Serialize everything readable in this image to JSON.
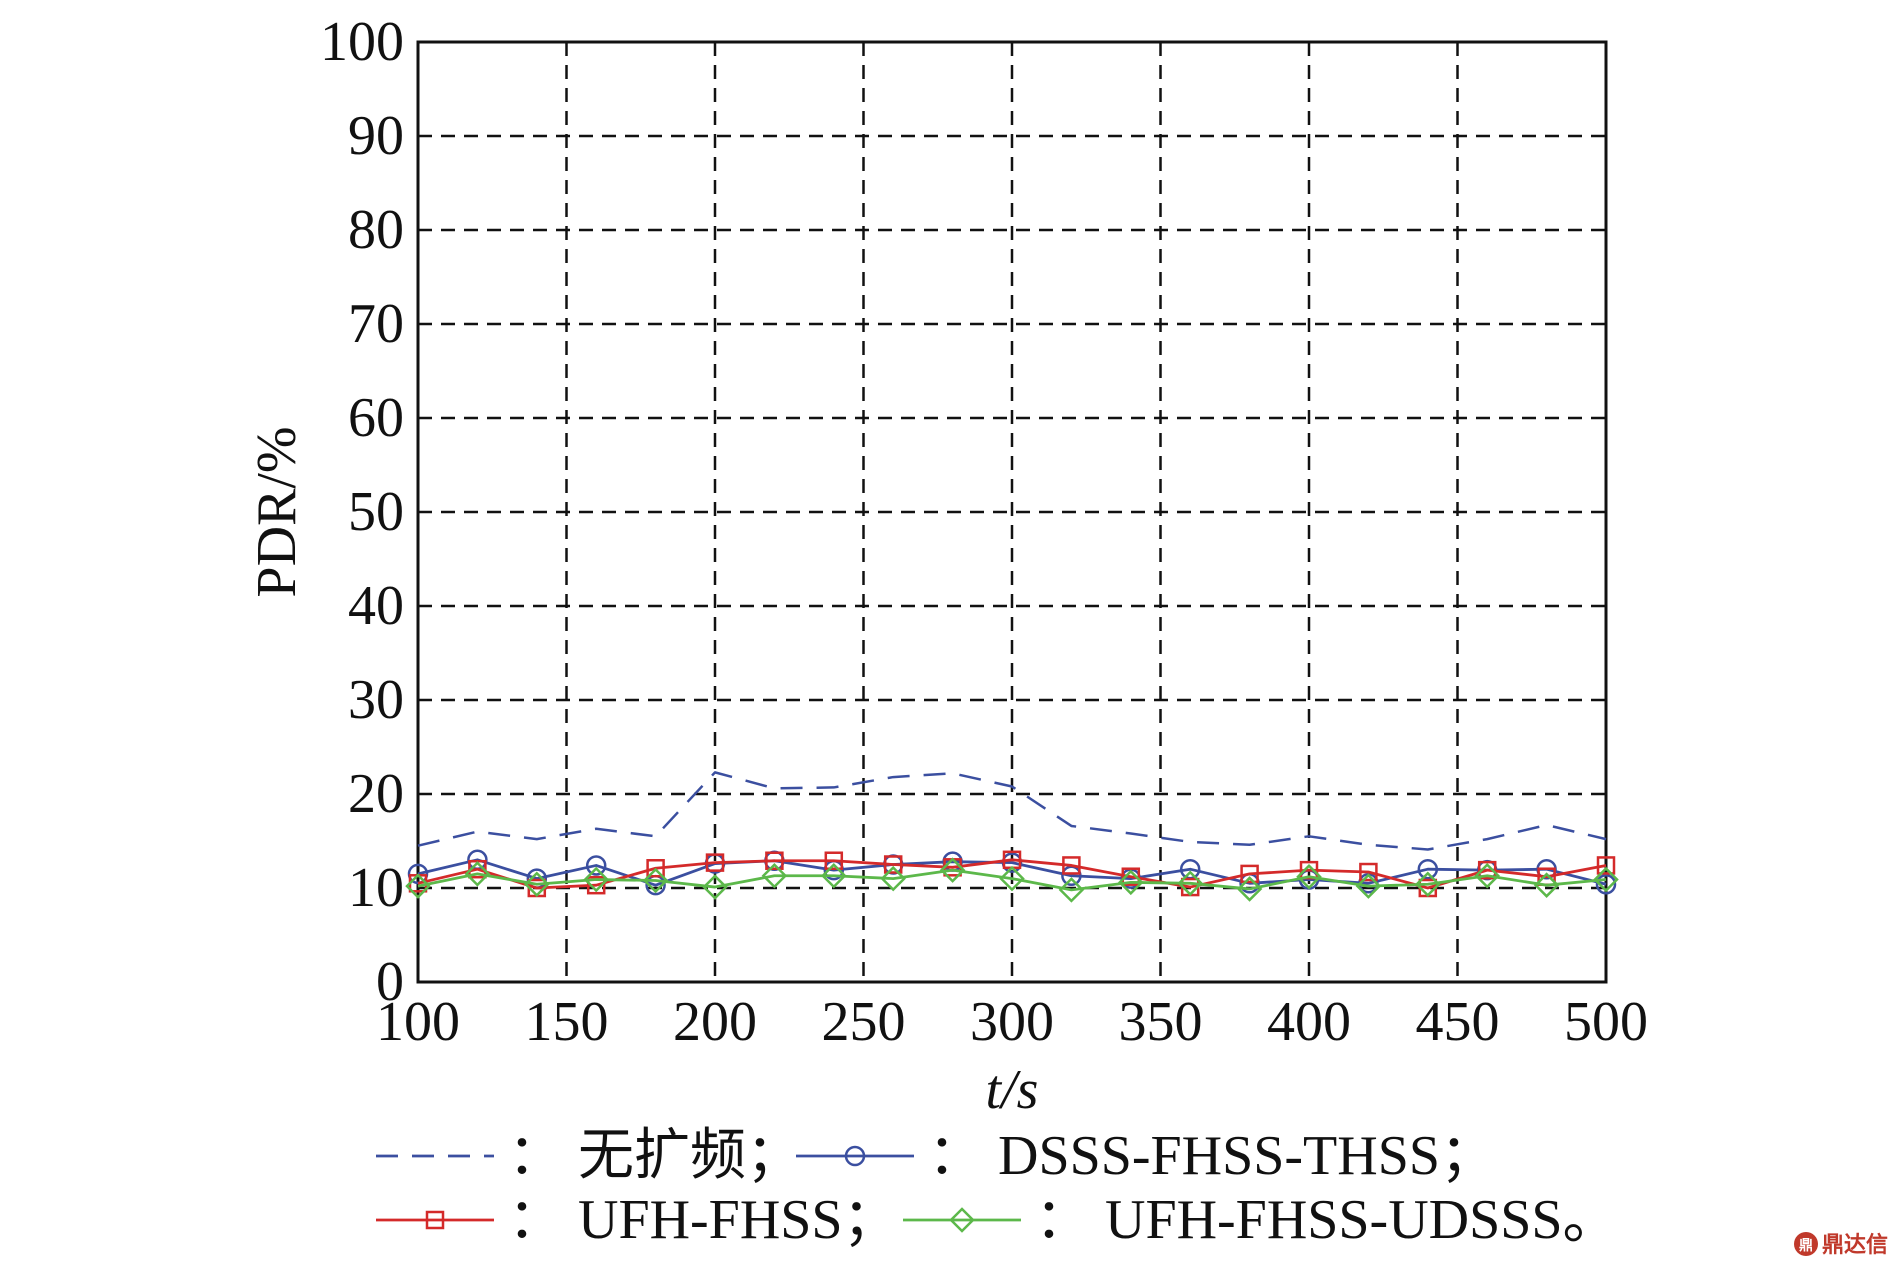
{
  "chart_data": {
    "type": "line",
    "xlabel": "t/s",
    "ylabel": "PDR/%",
    "xlim": [
      100,
      500
    ],
    "ylim": [
      0,
      100
    ],
    "xticks": [
      100,
      150,
      200,
      250,
      300,
      350,
      400,
      450,
      500
    ],
    "yticks": [
      0,
      10,
      20,
      30,
      40,
      50,
      60,
      70,
      80,
      90,
      100
    ],
    "grid": true,
    "x": [
      100,
      120,
      140,
      160,
      180,
      200,
      220,
      240,
      260,
      280,
      300,
      320,
      340,
      360,
      380,
      400,
      420,
      440,
      460,
      480,
      500
    ],
    "series": [
      {
        "name": "无扩频",
        "color": "#3b4fa0",
        "marker": "none",
        "dash": true,
        "values": [
          14.5,
          16,
          15.2,
          16.3,
          15.5,
          22.3,
          20.6,
          20.7,
          21.8,
          22.2,
          20.8,
          16.6,
          15.8,
          14.9,
          14.6,
          15.5,
          14.6,
          14.1,
          15.2,
          16.7,
          15.2
        ]
      },
      {
        "name": "DSSS-FHSS-THSS",
        "color": "#3b4fa0",
        "marker": "circle",
        "dash": false,
        "values": [
          11.5,
          13,
          11,
          12.4,
          10.3,
          12.6,
          12.9,
          11.9,
          12.5,
          12.8,
          12.7,
          11.3,
          11,
          12,
          10.5,
          10.9,
          10.5,
          12,
          11.9,
          12,
          10.4
        ]
      },
      {
        "name": "UFH-FHSS",
        "color": "#d42a2a",
        "marker": "square",
        "dash": false,
        "values": [
          10.5,
          12,
          10,
          10.3,
          12.1,
          12.7,
          12.9,
          12.9,
          12.5,
          12.2,
          13,
          12.4,
          11.2,
          10.1,
          11.5,
          11.9,
          11.7,
          10,
          11.9,
          11.2,
          12.4
        ]
      },
      {
        "name": "UFH-FHSS-UDSSS",
        "color": "#5cb84a",
        "marker": "diamond",
        "dash": false,
        "values": [
          10.2,
          11.5,
          10.4,
          10.9,
          10.8,
          10.1,
          11.3,
          11.3,
          11,
          11.9,
          11,
          9.8,
          10.6,
          10.5,
          9.9,
          11.2,
          10.2,
          10.4,
          11.3,
          10.3,
          10.9
        ]
      }
    ]
  },
  "legend": {
    "rows": [
      [
        {
          "series": 0,
          "sep": "：",
          "label": "无扩频",
          "end": "；"
        },
        {
          "series": 1,
          "sep": "：",
          "label": "DSSS-FHSS-THSS",
          "end": "；"
        }
      ],
      [
        {
          "series": 2,
          "sep": "：",
          "label": "UFH-FHSS",
          "end": "；"
        },
        {
          "series": 3,
          "sep": "：",
          "label": "UFH-FHSS-UDSSS",
          "end": "。"
        }
      ]
    ]
  },
  "watermark": "鼎达信"
}
